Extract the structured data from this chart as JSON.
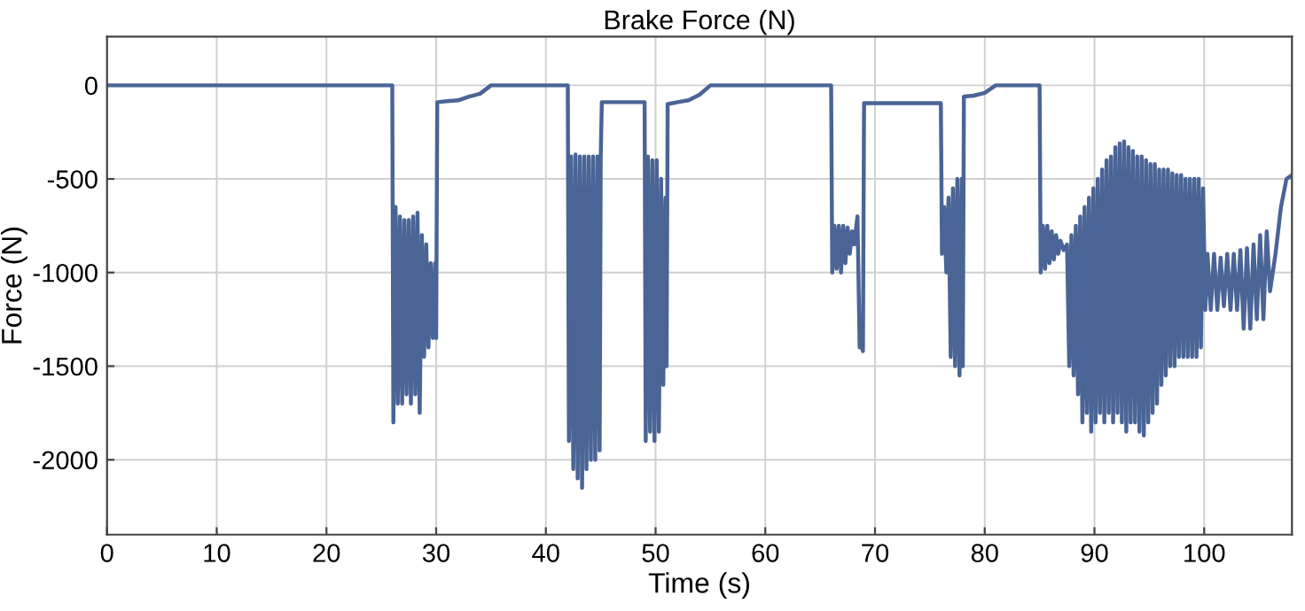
{
  "chart_data": {
    "type": "line",
    "title": "Brake Force (N)",
    "xlabel": "Time (s)",
    "ylabel": "Force (N)",
    "xlim": [
      0,
      108
    ],
    "ylim": [
      -2400,
      260
    ],
    "xticks": [
      0,
      10,
      20,
      30,
      40,
      50,
      60,
      70,
      80,
      90,
      100
    ],
    "yticks": [
      -2000,
      -1500,
      -1000,
      -500,
      0
    ],
    "grid": true,
    "legend": false,
    "marker": "none",
    "line_style": "solid",
    "series": [
      {
        "color": "#4a6496",
        "x": [
          0,
          26.0,
          26.1,
          26.3,
          26.5,
          26.7,
          26.9,
          27.1,
          27.3,
          27.5,
          27.7,
          27.9,
          28.1,
          28.3,
          28.5,
          28.7,
          28.9,
          29.1,
          29.3,
          29.5,
          29.7,
          29.9,
          30.0,
          30.1,
          31,
          32,
          33,
          34,
          35,
          42,
          42.1,
          42.3,
          42.5,
          42.7,
          42.9,
          43.1,
          43.3,
          43.5,
          43.7,
          43.9,
          44.1,
          44.3,
          44.5,
          44.7,
          44.9,
          45.0,
          45.1,
          49,
          49.1,
          49.3,
          49.5,
          49.7,
          49.9,
          50.1,
          50.3,
          50.5,
          50.7,
          50.9,
          51.0,
          51.1,
          52,
          53,
          54,
          55,
          66,
          66.1,
          66.3,
          66.5,
          66.7,
          66.9,
          67.1,
          67.3,
          67.5,
          67.7,
          67.9,
          68.1,
          68.4,
          68.6,
          68.8,
          68.9,
          69.0,
          76,
          76.1,
          76.3,
          76.5,
          76.7,
          76.9,
          77.1,
          77.3,
          77.5,
          77.7,
          77.9,
          78.0,
          78.1,
          79,
          80,
          81,
          85,
          85.1,
          85.3,
          85.5,
          85.7,
          85.9,
          86.1,
          86.3,
          86.5,
          86.7,
          86.9,
          87.2,
          87.5,
          87.7,
          87.9,
          88.1,
          88.3,
          88.5,
          88.7,
          88.9,
          89.1,
          89.3,
          89.5,
          89.7,
          89.9,
          90.1,
          90.3,
          90.5,
          90.7,
          90.9,
          91.1,
          91.3,
          91.5,
          91.7,
          91.9,
          92.1,
          92.3,
          92.5,
          92.7,
          92.9,
          93.1,
          93.3,
          93.5,
          93.7,
          93.9,
          94.1,
          94.3,
          94.5,
          94.7,
          94.9,
          95.1,
          95.3,
          95.5,
          95.7,
          95.9,
          96.1,
          96.3,
          96.5,
          96.7,
          96.9,
          97.1,
          97.3,
          97.5,
          97.7,
          97.9,
          98.1,
          98.3,
          98.5,
          98.7,
          98.9,
          99.1,
          99.3,
          99.5,
          99.7,
          99.9,
          100.1,
          100.3,
          100.6,
          100.9,
          101.2,
          101.5,
          101.8,
          102.1,
          102.4,
          102.7,
          103.0,
          103.3,
          103.6,
          103.9,
          104.2,
          104.5,
          104.8,
          105.1,
          105.4,
          105.7,
          106.0,
          106.5,
          107,
          107.5,
          108
        ],
        "values": [
          0,
          0,
          -1800,
          -650,
          -1700,
          -700,
          -1700,
          -720,
          -1650,
          -720,
          -1700,
          -700,
          -1650,
          -680,
          -1750,
          -800,
          -1450,
          -850,
          -1400,
          -950,
          -1350,
          -950,
          -1350,
          -90,
          -85,
          -80,
          -60,
          -45,
          0,
          0,
          -1900,
          -380,
          -2050,
          -370,
          -2100,
          -380,
          -2150,
          -380,
          -2050,
          -380,
          -2000,
          -380,
          -2000,
          -380,
          -1950,
          -380,
          -90,
          -90,
          -1900,
          -380,
          -1850,
          -400,
          -1900,
          -400,
          -1850,
          -500,
          -1600,
          -600,
          -1500,
          -100,
          -90,
          -80,
          -50,
          0,
          0,
          -1000,
          -750,
          -980,
          -750,
          -1000,
          -750,
          -950,
          -760,
          -900,
          -780,
          -850,
          -700,
          -1400,
          -1400,
          -1420,
          -95,
          -95,
          -900,
          -650,
          -1000,
          -600,
          -1450,
          -550,
          -1500,
          -500,
          -1550,
          -500,
          -1500,
          -60,
          -55,
          -40,
          0,
          0,
          -1000,
          -750,
          -980,
          -750,
          -950,
          -780,
          -930,
          -800,
          -900,
          -830,
          -880,
          -850,
          -1500,
          -800,
          -1550,
          -750,
          -1650,
          -700,
          -1800,
          -650,
          -1750,
          -600,
          -1850,
          -550,
          -1800,
          -500,
          -1750,
          -450,
          -1800,
          -400,
          -1750,
          -380,
          -1800,
          -330,
          -1750,
          -310,
          -1800,
          -300,
          -1850,
          -330,
          -1800,
          -350,
          -1800,
          -380,
          -1850,
          -380,
          -1870,
          -400,
          -1800,
          -420,
          -1750,
          -420,
          -1700,
          -450,
          -1600,
          -450,
          -1550,
          -450,
          -1500,
          -470,
          -1500,
          -480,
          -1450,
          -480,
          -1450,
          -500,
          -1450,
          -500,
          -1450,
          -500,
          -1450,
          -500,
          -1400,
          -550,
          -1200,
          -900,
          -1200,
          -900,
          -1200,
          -920,
          -1180,
          -900,
          -1200,
          -900,
          -1200,
          -880,
          -1300,
          -870,
          -1300,
          -850,
          -1250,
          -800,
          -1250,
          -780,
          -1100,
          -900,
          -650,
          -500,
          -480
        ]
      }
    ]
  }
}
